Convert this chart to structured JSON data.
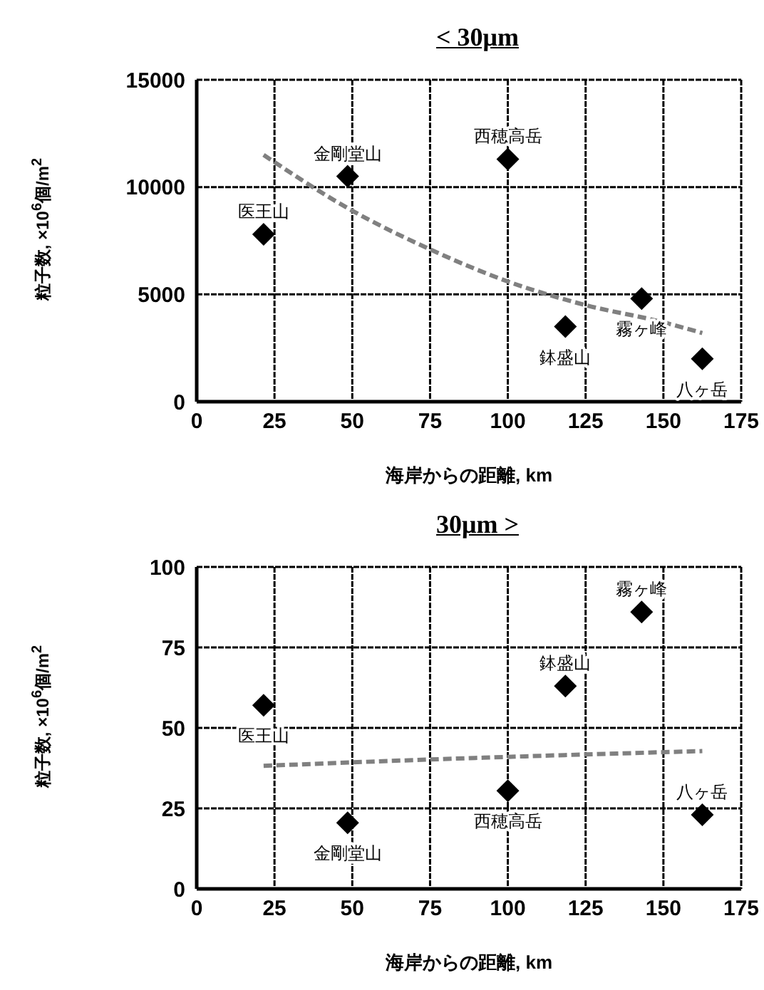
{
  "chart_data": [
    {
      "type": "scatter",
      "title": "< 30μm",
      "xlabel": "海岸からの距離, km",
      "ylabel": "粒子数, ×10$^{6}$個/m$^{2}$",
      "xlim": [
        0,
        175
      ],
      "xticks": [
        0,
        25,
        50,
        75,
        100,
        125,
        150,
        175
      ],
      "ylim": [
        0,
        15000
      ],
      "yticks": [
        0,
        5000,
        10000,
        15000
      ],
      "grid": true,
      "series": [
        {
          "marker": "diamond",
          "color": "#000000",
          "x": [
            21.5,
            48.5,
            100,
            118.5,
            143,
            162.5
          ],
          "values": [
            7800,
            10500,
            11300,
            3500,
            4800,
            2000
          ]
        },
        {
          "type": "line",
          "color": "#808080",
          "line_style": "dashed",
          "x": [
            21.5,
            50,
            75,
            100,
            125,
            150,
            162.5
          ],
          "values": [
            11500,
            8900,
            7100,
            5600,
            4500,
            3700,
            3200
          ]
        }
      ],
      "annotations": [
        {
          "text": "医王山",
          "x": 21.5,
          "y": 7800
        },
        {
          "text": "金剛堂山",
          "x": 48.5,
          "y": 10500
        },
        {
          "text": "西穂高岳",
          "x": 100,
          "y": 11300
        },
        {
          "text": "鉢盛山",
          "x": 118.5,
          "y": 3500
        },
        {
          "text": "霧ヶ峰",
          "x": 143,
          "y": 4800
        },
        {
          "text": "八ヶ岳",
          "x": 162.5,
          "y": 2000
        }
      ]
    },
    {
      "type": "scatter",
      "title": "30μm >",
      "xlabel": "海岸からの距離, km",
      "ylabel": "粒子数, ×10$^{6}$個/m$^{2}$",
      "xlim": [
        0,
        175
      ],
      "xticks": [
        0,
        25,
        50,
        75,
        100,
        125,
        150,
        175
      ],
      "ylim": [
        0,
        100
      ],
      "yticks": [
        0,
        25,
        50,
        75,
        100
      ],
      "grid": true,
      "series": [
        {
          "marker": "diamond",
          "color": "#000000",
          "x": [
            21.5,
            48.5,
            100,
            118.5,
            143,
            162.5
          ],
          "values": [
            57,
            20.5,
            30.5,
            63,
            86,
            23
          ]
        },
        {
          "type": "line",
          "color": "#808080",
          "line_style": "dashed",
          "x": [
            21.5,
            50,
            100,
            162.5
          ],
          "values": [
            38.2,
            39.3,
            41,
            42.8
          ]
        }
      ],
      "annotations": [
        {
          "text": "医王山",
          "x": 21.5,
          "y": 57
        },
        {
          "text": "金剛堂山",
          "x": 48.5,
          "y": 20.5
        },
        {
          "text": "西穂高岳",
          "x": 100,
          "y": 30.5
        },
        {
          "text": "鉢盛山",
          "x": 118.5,
          "y": 63
        },
        {
          "text": "霧ヶ峰",
          "x": 143,
          "y": 86
        },
        {
          "text": "八ヶ岳",
          "x": 162.5,
          "y": 23
        }
      ]
    }
  ]
}
